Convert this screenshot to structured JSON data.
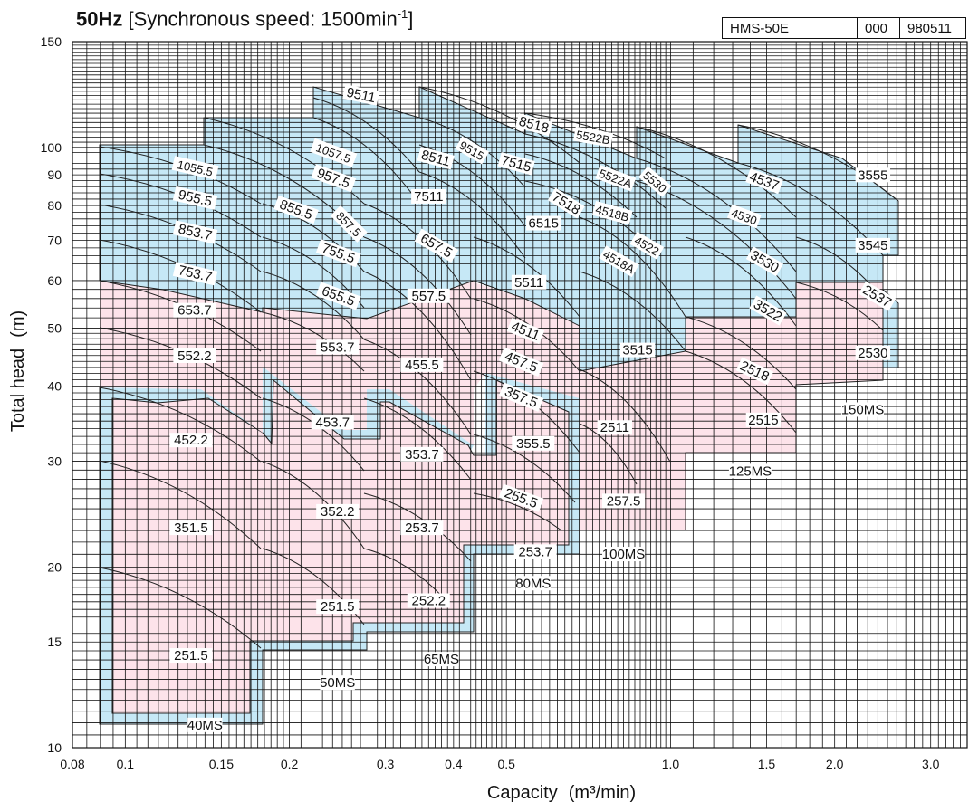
{
  "header": {
    "freq": "50Hz",
    "speed_prefix": "[Synchronous speed: 1500min",
    "speed_sup": "-1",
    "speed_suffix": "]",
    "model": "HMS-50E",
    "code1": "000",
    "code2": "980511"
  },
  "colors": {
    "pink": "#fde3ea",
    "blue": "#c6e8f6",
    "grid": "#111111"
  },
  "chart_data": {
    "type": "area",
    "xlabel": "Capacity",
    "xunit": "(m³/min)",
    "ylabel": "Total head",
    "yunit": "(m)",
    "xscale": "log",
    "yscale": "log",
    "xlim": [
      0.08,
      3.5
    ],
    "ylim": [
      10,
      150
    ],
    "grid": true,
    "xticks": [
      "0.08",
      "0.1",
      "0.15",
      "0.2",
      "0.3",
      "0.4",
      "0.5",
      "1.0",
      "1.5",
      "2.0",
      "3.0"
    ],
    "xtick_values": [
      0.08,
      0.1,
      0.15,
      0.2,
      0.3,
      0.4,
      0.5,
      1.0,
      1.5,
      2.0,
      3.0
    ],
    "yticks": [
      "10",
      "15",
      "20",
      "30",
      "40",
      "50",
      "60",
      "70",
      "80",
      "90",
      "100",
      "150"
    ],
    "ytick_values": [
      10,
      15,
      20,
      30,
      40,
      50,
      60,
      70,
      80,
      90,
      100,
      150
    ],
    "series_labels": [
      {
        "text": "40MS",
        "x": 0.14,
        "y": 10.8,
        "kind": "bore"
      },
      {
        "text": "50MS",
        "x": 0.245,
        "y": 12.7,
        "kind": "bore"
      },
      {
        "text": "65MS",
        "x": 0.38,
        "y": 13.9,
        "kind": "bore"
      },
      {
        "text": "80MS",
        "x": 0.56,
        "y": 18.6,
        "kind": "bore"
      },
      {
        "text": "100MS",
        "x": 0.82,
        "y": 20.8,
        "kind": "bore"
      },
      {
        "text": "125MS",
        "x": 1.4,
        "y": 28.6,
        "kind": "bore"
      },
      {
        "text": "150MS",
        "x": 2.25,
        "y": 36.2,
        "kind": "bore"
      },
      {
        "text": "251.5",
        "x": 0.132,
        "y": 14.1,
        "kind": "model"
      },
      {
        "text": "351.5",
        "x": 0.132,
        "y": 23.0,
        "kind": "model"
      },
      {
        "text": "452.2",
        "x": 0.132,
        "y": 32.2,
        "kind": "model"
      },
      {
        "text": "552.2",
        "x": 0.134,
        "y": 44.5,
        "kind": "model"
      },
      {
        "text": "653.7",
        "x": 0.134,
        "y": 53.0,
        "kind": "model"
      },
      {
        "text": "753.7",
        "x": 0.134,
        "y": 61.0,
        "kind": "model",
        "rot": 13
      },
      {
        "text": "853.7",
        "x": 0.134,
        "y": 71.5,
        "kind": "model",
        "rot": 13
      },
      {
        "text": "955.5",
        "x": 0.134,
        "y": 81.5,
        "kind": "model",
        "rot": 13
      },
      {
        "text": "1055.5",
        "x": 0.134,
        "y": 91.5,
        "kind": "model",
        "rot": 13,
        "small": true
      },
      {
        "text": "251.5",
        "x": 0.245,
        "y": 17.0,
        "kind": "model"
      },
      {
        "text": "352.2",
        "x": 0.245,
        "y": 24.5,
        "kind": "model"
      },
      {
        "text": "453.7",
        "x": 0.24,
        "y": 34.5,
        "kind": "model"
      },
      {
        "text": "553.7",
        "x": 0.245,
        "y": 46.0,
        "kind": "model"
      },
      {
        "text": "655.5",
        "x": 0.245,
        "y": 56.0,
        "kind": "model",
        "rot": 20
      },
      {
        "text": "755.5",
        "x": 0.245,
        "y": 66.0,
        "kind": "model",
        "rot": 20
      },
      {
        "text": "855.5",
        "x": 0.205,
        "y": 78.0,
        "kind": "model",
        "rot": 20
      },
      {
        "text": "857.5",
        "x": 0.255,
        "y": 74.0,
        "kind": "model",
        "rot": 45,
        "small": true
      },
      {
        "text": "957.5",
        "x": 0.24,
        "y": 88.0,
        "kind": "model",
        "rot": 20
      },
      {
        "text": "1057.5",
        "x": 0.24,
        "y": 97.0,
        "kind": "model",
        "rot": 20,
        "small": true
      },
      {
        "text": "9511",
        "x": 0.27,
        "y": 121.0,
        "kind": "model",
        "rot": 12
      },
      {
        "text": "252.2",
        "x": 0.36,
        "y": 17.4,
        "kind": "model"
      },
      {
        "text": "253.7",
        "x": 0.35,
        "y": 23.0,
        "kind": "model"
      },
      {
        "text": "353.7",
        "x": 0.35,
        "y": 30.5,
        "kind": "model"
      },
      {
        "text": "455.5",
        "x": 0.35,
        "y": 43.0,
        "kind": "model"
      },
      {
        "text": "557.5",
        "x": 0.36,
        "y": 56.0,
        "kind": "model"
      },
      {
        "text": "657.5",
        "x": 0.37,
        "y": 68.0,
        "kind": "model",
        "rot": 30
      },
      {
        "text": "7511",
        "x": 0.36,
        "y": 82.0,
        "kind": "model"
      },
      {
        "text": "8511",
        "x": 0.37,
        "y": 95.0,
        "kind": "model",
        "rot": 15
      },
      {
        "text": "9515",
        "x": 0.43,
        "y": 98.0,
        "kind": "model",
        "rot": 30,
        "small": true
      },
      {
        "text": "253.7",
        "x": 0.565,
        "y": 21.0,
        "kind": "model"
      },
      {
        "text": "255.5",
        "x": 0.53,
        "y": 25.8,
        "kind": "model",
        "rot": 20
      },
      {
        "text": "355.5",
        "x": 0.56,
        "y": 31.8,
        "kind": "model"
      },
      {
        "text": "357.5",
        "x": 0.53,
        "y": 38.0,
        "kind": "model",
        "rot": 22
      },
      {
        "text": "457.5",
        "x": 0.53,
        "y": 43.5,
        "kind": "model",
        "rot": 22
      },
      {
        "text": "4511",
        "x": 0.54,
        "y": 49.0,
        "kind": "model",
        "rot": 22
      },
      {
        "text": "5511",
        "x": 0.55,
        "y": 59.0,
        "kind": "model"
      },
      {
        "text": "6515",
        "x": 0.585,
        "y": 74.0,
        "kind": "model"
      },
      {
        "text": "7518",
        "x": 0.64,
        "y": 80.0,
        "kind": "model",
        "rot": 32
      },
      {
        "text": "7515",
        "x": 0.52,
        "y": 93.0,
        "kind": "model",
        "rot": 15
      },
      {
        "text": "8518",
        "x": 0.56,
        "y": 108.0,
        "kind": "model",
        "rot": 15
      },
      {
        "text": "257.5",
        "x": 0.82,
        "y": 25.5,
        "kind": "model"
      },
      {
        "text": "2511",
        "x": 0.79,
        "y": 33.8,
        "kind": "model"
      },
      {
        "text": "3515",
        "x": 0.87,
        "y": 45.5,
        "kind": "model"
      },
      {
        "text": "4518A",
        "x": 0.8,
        "y": 64.0,
        "kind": "model",
        "rot": 30,
        "small": true
      },
      {
        "text": "4518B",
        "x": 0.78,
        "y": 77.0,
        "kind": "model",
        "rot": 15,
        "small": true
      },
      {
        "text": "4522",
        "x": 0.9,
        "y": 68.0,
        "kind": "model",
        "rot": 30,
        "small": true
      },
      {
        "text": "5522A",
        "x": 0.79,
        "y": 88.0,
        "kind": "model",
        "rot": 20,
        "small": true
      },
      {
        "text": "5530",
        "x": 0.93,
        "y": 87.0,
        "kind": "model",
        "rot": 40,
        "small": true
      },
      {
        "text": "5522B",
        "x": 0.72,
        "y": 103.0,
        "kind": "model",
        "rot": 10,
        "small": true
      },
      {
        "text": "2515",
        "x": 1.48,
        "y": 34.8,
        "kind": "model"
      },
      {
        "text": "2518",
        "x": 1.42,
        "y": 42.0,
        "kind": "model",
        "rot": 25
      },
      {
        "text": "3522",
        "x": 1.5,
        "y": 53.0,
        "kind": "model",
        "rot": 30
      },
      {
        "text": "3530",
        "x": 1.48,
        "y": 64.0,
        "kind": "model",
        "rot": 30
      },
      {
        "text": "4530",
        "x": 1.36,
        "y": 76.0,
        "kind": "model",
        "rot": 20,
        "small": true
      },
      {
        "text": "4537",
        "x": 1.48,
        "y": 87.0,
        "kind": "model",
        "rot": 20
      },
      {
        "text": "2530",
        "x": 2.35,
        "y": 45.0,
        "kind": "model"
      },
      {
        "text": "2537",
        "x": 2.38,
        "y": 56.0,
        "kind": "model",
        "rot": 30
      },
      {
        "text": "3545",
        "x": 2.35,
        "y": 68.0,
        "kind": "model"
      },
      {
        "text": "3555",
        "x": 2.35,
        "y": 89.0,
        "kind": "model"
      }
    ]
  }
}
